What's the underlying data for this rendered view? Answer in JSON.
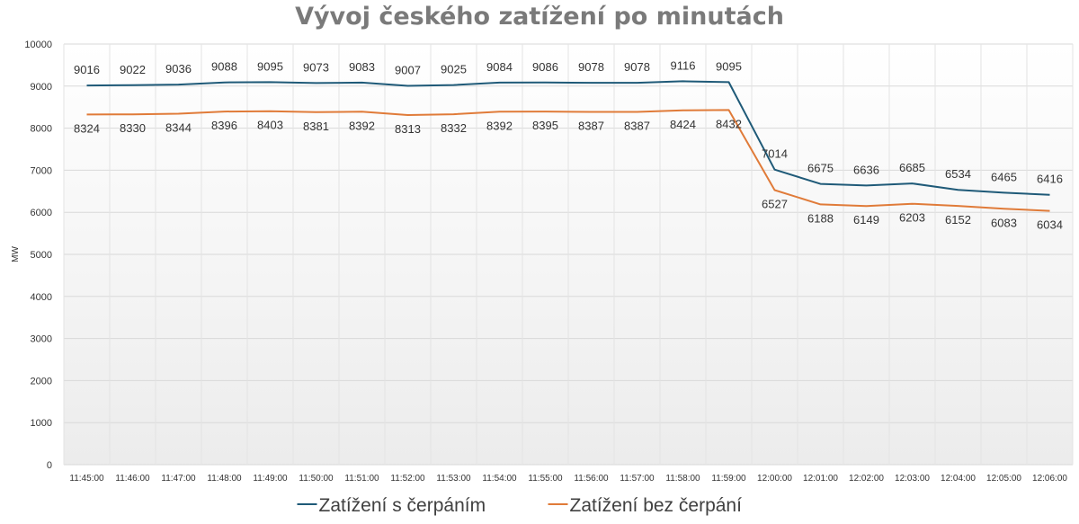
{
  "chart_data": {
    "type": "line",
    "title": "Vývoj českého zatížení po minutách",
    "ylabel": "MW",
    "xlabel": "",
    "ylim": [
      0,
      10000
    ],
    "yticks": [
      0,
      1000,
      2000,
      3000,
      4000,
      5000,
      6000,
      7000,
      8000,
      9000,
      10000
    ],
    "grid": true,
    "legend_position": "bottom",
    "categories": [
      "11:45:00",
      "11:46:00",
      "11:47:00",
      "11:48:00",
      "11:49:00",
      "11:50:00",
      "11:51:00",
      "11:52:00",
      "11:53:00",
      "11:54:00",
      "11:55:00",
      "11:56:00",
      "11:57:00",
      "11:58:00",
      "11:59:00",
      "12:00:00",
      "12:01:00",
      "12:02:00",
      "12:03:00",
      "12:04:00",
      "12:05:00",
      "12:06:00"
    ],
    "series": [
      {
        "name": "Zatížení s čerpáním",
        "color": "#1f5a78",
        "label_position": "above",
        "values": [
          9016,
          9022,
          9036,
          9088,
          9095,
          9073,
          9083,
          9007,
          9025,
          9084,
          9086,
          9078,
          9078,
          9116,
          9095,
          7014,
          6675,
          6636,
          6685,
          6534,
          6465,
          6416
        ]
      },
      {
        "name": "Zatížení bez čerpání",
        "color": "#e07b39",
        "label_position": "below",
        "values": [
          8324,
          8330,
          8344,
          8396,
          8403,
          8381,
          8392,
          8313,
          8332,
          8392,
          8395,
          8387,
          8387,
          8424,
          8432,
          6527,
          6188,
          6149,
          6203,
          6152,
          6083,
          6034
        ]
      }
    ]
  }
}
